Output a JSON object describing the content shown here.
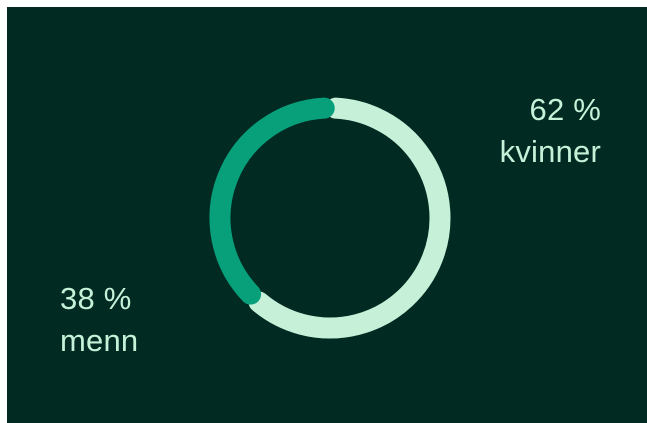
{
  "chart_data": {
    "type": "pie",
    "style": "donut",
    "slices": [
      {
        "name": "kvinner",
        "value": 62,
        "value_label": "62 %",
        "color": "#c6f1d8"
      },
      {
        "name": "menn",
        "value": 38,
        "value_label": "38 %",
        "color": "#07a07a"
      }
    ]
  },
  "colors": {
    "background": "#002a22",
    "text": "#c6f1d8"
  }
}
